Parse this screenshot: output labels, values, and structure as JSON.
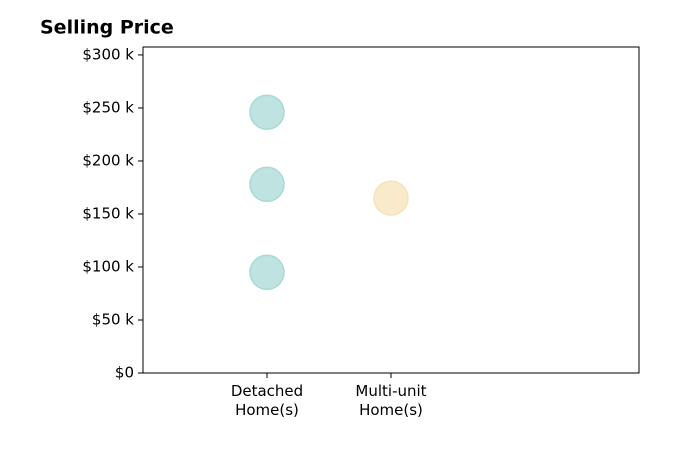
{
  "chart_data": {
    "type": "strip",
    "title": "Selling Price",
    "groups": [
      {
        "label": "Detached\nHome(s)",
        "color": "#a8dad5",
        "values": [
          246000,
          178000,
          95000
        ]
      },
      {
        "label": "Multi-unit\nHome(s)",
        "color": "#f6e3b8",
        "values": [
          165000
        ]
      }
    ],
    "ylim": [
      0,
      307500
    ],
    "yticks": [
      {
        "value": 0,
        "label": "$0"
      },
      {
        "value": 50000,
        "label": "$50 k"
      },
      {
        "value": 100000,
        "label": "$100 k"
      },
      {
        "value": 150000,
        "label": "$150 k"
      },
      {
        "value": 200000,
        "label": "$200 k"
      },
      {
        "value": 250000,
        "label": "$250 k"
      },
      {
        "value": 300000,
        "label": "$300 k"
      }
    ],
    "grid": false
  }
}
